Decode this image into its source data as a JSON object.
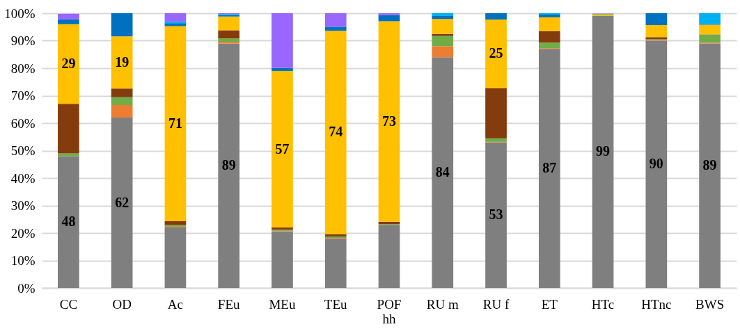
{
  "chart_data": {
    "type": "bar",
    "stacked": true,
    "categories": [
      "CC",
      "OD",
      "Ac",
      "FEu",
      "MEu",
      "TEu",
      "POF\nhh",
      "RU m",
      "RU f",
      "ET",
      "HTc",
      "HTnc",
      "BWS"
    ],
    "series": [
      {
        "color": "#7f7f7f",
        "values": [
          48,
          62,
          22,
          89,
          20.6,
          18,
          23,
          84,
          53,
          87,
          99,
          90,
          89
        ],
        "value_labels": [
          "48",
          "62",
          null,
          "89",
          null,
          null,
          null,
          "84",
          "53",
          "87",
          "99",
          "90",
          "89"
        ]
      },
      {
        "color": "#ed7d31",
        "values": [
          null,
          4.6,
          0.3,
          0.6,
          0.2,
          0.2,
          0,
          4,
          0.2,
          0.3,
          0,
          0.2,
          0.3
        ]
      },
      {
        "color": "#70ad47",
        "values": [
          1,
          2.8,
          0.6,
          1.2,
          0.4,
          0.5,
          0.2,
          3.7,
          1.2,
          2,
          0,
          0.3,
          2.9
        ]
      },
      {
        "color": "#843c0c",
        "values": [
          18,
          3.2,
          1.4,
          3,
          0.8,
          0.9,
          0.9,
          0.8,
          18.3,
          4.2,
          null,
          0.8,
          0.1
        ]
      },
      {
        "color": "#ffc000",
        "values": [
          29,
          19,
          71,
          5,
          57,
          74,
          73,
          5.4,
          25,
          5,
          0.6,
          4.4,
          3.5
        ],
        "value_labels": [
          "29",
          "19",
          "71",
          null,
          "57",
          "74",
          "73",
          null,
          "25",
          null,
          null,
          null,
          null
        ]
      },
      {
        "color": "#0070c0",
        "values": [
          1.8,
          8.4,
          1.1,
          0.6,
          1.1,
          1.5,
          2.2,
          1.1,
          2.3,
          1,
          0.1,
          4.3,
          0.3
        ]
      },
      {
        "color": "#00b0f0",
        "values": [
          0,
          0,
          0.6,
          0.3,
          0,
          0,
          0,
          1,
          0,
          0.5,
          0.1,
          0,
          3.9
        ]
      },
      {
        "color": "#9966ff",
        "values": [
          2,
          0,
          3,
          0.3,
          19.9,
          4.9,
          0.7,
          0,
          0,
          0,
          0.1,
          0,
          0
        ]
      }
    ],
    "ylim": [
      0,
      100
    ],
    "yticks": [
      {
        "value": 0,
        "label": "0%"
      },
      {
        "value": 10,
        "label": "10%"
      },
      {
        "value": 20,
        "label": "20%"
      },
      {
        "value": 30,
        "label": "30%"
      },
      {
        "value": 40,
        "label": "40%"
      },
      {
        "value": 50,
        "label": "50%"
      },
      {
        "value": 60,
        "label": "60%"
      },
      {
        "value": 70,
        "label": "70%"
      },
      {
        "value": 80,
        "label": "80%"
      },
      {
        "value": 90,
        "label": "90%"
      },
      {
        "value": 100,
        "label": "100%"
      }
    ],
    "grid": "y"
  }
}
